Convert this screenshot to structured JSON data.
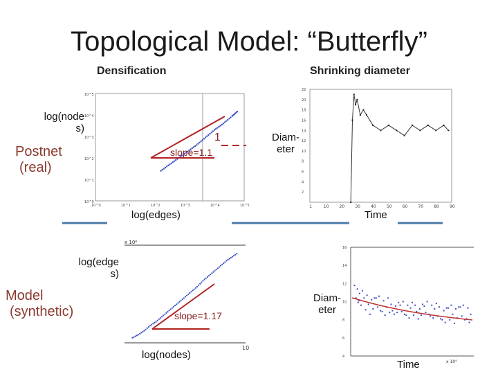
{
  "slide": {
    "title": "Topological Model: “Butterfly”",
    "col_densification": "Densification",
    "col_shrinking": "Shrinking diameter",
    "row_real_line1": "Postnet",
    "row_real_line2": "(real)",
    "row_model_line1": "Model",
    "row_model_line2": "(synthetic)"
  },
  "labels": {
    "top_left_y_1": "log(node",
    "top_left_y_2": "s)",
    "top_left_x": "log(edges)",
    "top_left_slope": "slope=1.1",
    "top_left_one": "1",
    "top_right_y_1": "Diam-",
    "top_right_y_2": "eter",
    "top_right_x": "Time",
    "bottom_left_y_1": "log(edge",
    "bottom_left_y_2": "s)",
    "bottom_left_x": "log(nodes)",
    "bottom_left_slope": "slope=1.17",
    "bottom_right_y_1": "Diam-",
    "bottom_right_y_2": "eter",
    "bottom_right_x": "Time"
  },
  "colors": {
    "points": "#3a4fc7",
    "fit_line": "#b22222",
    "divider": "#4a7aa8"
  },
  "chart_data": [
    {
      "type": "scatter",
      "title": "",
      "xlabel": "log(edges)",
      "ylabel": "log(nodes)",
      "log_scale": true,
      "x_ticks": [
        "10^0",
        "10^1",
        "10^2",
        "10^3",
        "10^4",
        "10^5"
      ],
      "y_ticks": [
        "10^0",
        "10^1",
        "10^2",
        "10^3",
        "10^4",
        "10^5"
      ],
      "series": [
        {
          "name": "",
          "x": [
            2.2,
            2.5,
            2.8,
            3.1,
            3.4,
            3.7,
            4.0,
            4.3,
            4.6,
            4.8
          ],
          "y": [
            1.4,
            1.7,
            2.0,
            2.3,
            2.6,
            2.95,
            3.3,
            3.6,
            3.95,
            4.2
          ]
        }
      ],
      "fit_slope": 1.1
    },
    {
      "type": "line",
      "title": "",
      "xlabel": "Time",
      "ylabel": "Diameter",
      "xlim": [
        0,
        90
      ],
      "ylim": [
        0,
        22
      ],
      "x_ticks": [
        "1",
        "10",
        "20",
        "30",
        "40",
        "50",
        "60",
        "70",
        "80",
        "90"
      ],
      "y_ticks": [
        "2",
        "4",
        "6",
        "8",
        "10",
        "12",
        "14",
        "16",
        "18",
        "20",
        "22"
      ],
      "series": [
        {
          "name": "",
          "x": [
            26,
            27,
            28,
            29,
            30,
            32,
            34,
            36,
            40,
            45,
            50,
            55,
            60,
            65,
            70,
            75,
            80,
            85,
            88
          ],
          "y": [
            0,
            16,
            21,
            19,
            20,
            17,
            18,
            17,
            15,
            14,
            15,
            14,
            13,
            15,
            14,
            15,
            14,
            15,
            14
          ]
        }
      ]
    },
    {
      "type": "scatter",
      "title": "",
      "xlabel": "log(nodes)",
      "ylabel": "log(edges)",
      "series": [
        {
          "name": "",
          "x": [
            0.5,
            1,
            1.5,
            2,
            2.5,
            3,
            3.5,
            4,
            4.5,
            5,
            5.5,
            6,
            6.5,
            7,
            7.5,
            8,
            8.5,
            9,
            9.5
          ],
          "y": [
            0.3,
            0.6,
            1.0,
            1.5,
            1.9,
            2.4,
            2.9,
            3.4,
            3.9,
            4.4,
            4.9,
            5.4,
            6.0,
            6.5,
            7.0,
            7.5,
            8.0,
            8.4,
            8.8
          ]
        }
      ],
      "fit_slope": 1.17
    },
    {
      "type": "scatter",
      "title": "",
      "xlabel": "Time",
      "ylabel": "Diameter",
      "y_ticks": [
        "4",
        "6",
        "8",
        "10",
        "12",
        "14",
        "16"
      ],
      "series": [
        {
          "name": "",
          "x": [
            0.2,
            0.5,
            1,
            1.5,
            2,
            2.5,
            3,
            3.5,
            4,
            4.5,
            5,
            5.5,
            6,
            6.5,
            7,
            7.5,
            8,
            8.5,
            9,
            9.5
          ],
          "y": [
            11,
            10.5,
            10,
            9.5,
            9.7,
            9.2,
            9.5,
            9.3,
            9.4,
            9.0,
            9.3,
            8.9,
            9.2,
            8.8,
            9.0,
            8.6,
            8.9,
            8.5,
            8.7,
            8.4
          ]
        }
      ]
    }
  ]
}
